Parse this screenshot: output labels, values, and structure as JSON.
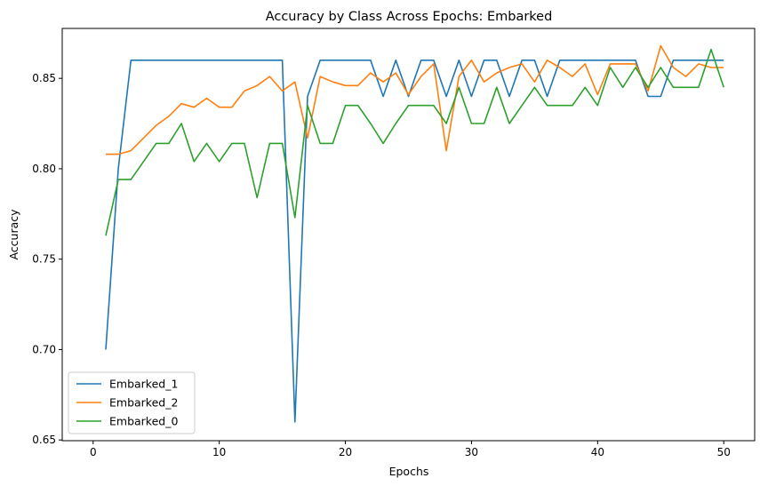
{
  "chart_data": {
    "type": "line",
    "title": "Accuracy by Class Across Epochs: Embarked",
    "xlabel": "Epochs",
    "ylabel": "Accuracy",
    "xlim": [
      -2.45,
      52.45
    ],
    "ylim": [
      0.6496,
      0.8776
    ],
    "x_ticks": [
      0,
      10,
      20,
      30,
      40,
      50
    ],
    "y_ticks": [
      0.65,
      0.7,
      0.75,
      0.8,
      0.85
    ],
    "y_tick_labels": [
      "0.65",
      "0.70",
      "0.75",
      "0.80",
      "0.85"
    ],
    "grid": false,
    "legend_position": "lower-left",
    "x": [
      1,
      2,
      3,
      4,
      5,
      6,
      7,
      8,
      9,
      10,
      11,
      12,
      13,
      14,
      15,
      16,
      17,
      18,
      19,
      20,
      21,
      22,
      23,
      24,
      25,
      26,
      27,
      28,
      29,
      30,
      31,
      32,
      33,
      34,
      35,
      36,
      37,
      38,
      39,
      40,
      41,
      42,
      43,
      44,
      45,
      46,
      47,
      48,
      49,
      50
    ],
    "series": [
      {
        "name": "Embarked_1",
        "color": "#1f77b4",
        "values": [
          0.7,
          0.8,
          0.86,
          0.86,
          0.86,
          0.86,
          0.86,
          0.86,
          0.86,
          0.86,
          0.86,
          0.86,
          0.86,
          0.86,
          0.86,
          0.66,
          0.84,
          0.86,
          0.86,
          0.86,
          0.86,
          0.86,
          0.84,
          0.86,
          0.84,
          0.86,
          0.86,
          0.84,
          0.86,
          0.84,
          0.86,
          0.86,
          0.84,
          0.86,
          0.86,
          0.84,
          0.86,
          0.86,
          0.86,
          0.86,
          0.86,
          0.86,
          0.86,
          0.84,
          0.84,
          0.86,
          0.86,
          0.86,
          0.86,
          0.86
        ]
      },
      {
        "name": "Embarked_2",
        "color": "#ff7f0e",
        "values": [
          0.808,
          0.808,
          0.81,
          0.817,
          0.824,
          0.829,
          0.836,
          0.834,
          0.839,
          0.834,
          0.834,
          0.843,
          0.846,
          0.851,
          0.843,
          0.848,
          0.817,
          0.851,
          0.848,
          0.846,
          0.846,
          0.853,
          0.848,
          0.853,
          0.841,
          0.851,
          0.858,
          0.81,
          0.851,
          0.86,
          0.848,
          0.853,
          0.856,
          0.858,
          0.848,
          0.86,
          0.856,
          0.851,
          0.858,
          0.841,
          0.858,
          0.858,
          0.858,
          0.843,
          0.868,
          0.856,
          0.851,
          0.858,
          0.856,
          0.856
        ]
      },
      {
        "name": "Embarked_0",
        "color": "#2ca02c",
        "values": [
          0.763,
          0.794,
          0.794,
          0.804,
          0.814,
          0.814,
          0.825,
          0.804,
          0.814,
          0.804,
          0.814,
          0.814,
          0.784,
          0.814,
          0.814,
          0.773,
          0.835,
          0.814,
          0.814,
          0.835,
          0.835,
          0.825,
          0.814,
          0.825,
          0.835,
          0.835,
          0.835,
          0.825,
          0.845,
          0.825,
          0.825,
          0.845,
          0.825,
          0.835,
          0.845,
          0.835,
          0.835,
          0.835,
          0.845,
          0.835,
          0.856,
          0.845,
          0.856,
          0.845,
          0.856,
          0.845,
          0.845,
          0.845,
          0.866,
          0.845
        ]
      }
    ]
  }
}
